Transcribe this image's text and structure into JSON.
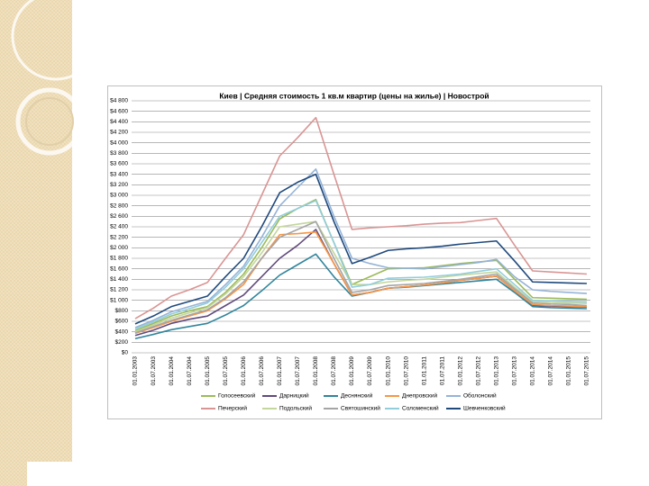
{
  "chart_data": {
    "type": "line",
    "title": "Киев | Средняя стоимость 1 кв.м квартир (цены на жилье) | Новострой",
    "categories": [
      "01.01.2003",
      "01.07.2003",
      "01.01.2004",
      "01.07.2004",
      "01.01.2005",
      "01.07.2005",
      "01.01.2006",
      "01.07.2006",
      "01.01.2007",
      "01.07.2007",
      "01.01.2008",
      "01.07.2008",
      "01.01.2009",
      "01.07.2009",
      "01.01.2010",
      "01.07.2010",
      "01.01.2011",
      "01.07.2011",
      "01.01.2012",
      "01.07.2012",
      "01.01.2013",
      "01.07.2013",
      "01.01.2014",
      "01.07.2014",
      "01.01.2015",
      "01.07.2015"
    ],
    "series": [
      {
        "name": "Голосеевский",
        "color": "#9bbb59",
        "values": [
          420,
          560,
          700,
          800,
          880,
          1150,
          1500,
          2000,
          2550,
          2750,
          2920,
          2100,
          1300,
          1450,
          1600,
          1610,
          1620,
          1660,
          1700,
          1730,
          1760,
          1400,
          1050,
          1040,
          1030,
          1020
        ]
      },
      {
        "name": "Дарницкий",
        "color": "#604a7b",
        "values": [
          330,
          430,
          560,
          640,
          700,
          900,
          1100,
          1450,
          1800,
          2050,
          2350,
          1700,
          1100,
          1150,
          1230,
          1260,
          1290,
          1330,
          1380,
          1420,
          1460,
          1180,
          900,
          890,
          880,
          870
        ]
      },
      {
        "name": "Деснянский",
        "color": "#31859c",
        "values": [
          270,
          350,
          440,
          500,
          560,
          720,
          900,
          1180,
          1480,
          1680,
          1880,
          1450,
          1080,
          1150,
          1230,
          1250,
          1280,
          1310,
          1340,
          1370,
          1400,
          1150,
          880,
          860,
          850,
          840
        ]
      },
      {
        "name": "Днепровский",
        "color": "#f79646",
        "values": [
          370,
          480,
          600,
          700,
          800,
          1030,
          1300,
          1800,
          2250,
          2270,
          2300,
          1700,
          1100,
          1150,
          1230,
          1260,
          1290,
          1330,
          1380,
          1420,
          1460,
          1180,
          920,
          900,
          890,
          880
        ]
      },
      {
        "name": "Оболонский",
        "color": "#95b3d7",
        "values": [
          480,
          620,
          780,
          880,
          980,
          1300,
          1650,
          2200,
          2800,
          3150,
          3500,
          2600,
          1800,
          1700,
          1620,
          1610,
          1600,
          1640,
          1680,
          1720,
          1780,
          1450,
          1200,
          1170,
          1150,
          1130
        ]
      },
      {
        "name": "Печерский",
        "color": "#d99594",
        "values": [
          650,
          850,
          1080,
          1200,
          1340,
          1800,
          2250,
          3000,
          3750,
          4100,
          4480,
          3400,
          2350,
          2380,
          2400,
          2420,
          2450,
          2470,
          2480,
          2520,
          2560,
          2050,
          1560,
          1540,
          1520,
          1500
        ]
      },
      {
        "name": "Подольский",
        "color": "#c3d69b",
        "values": [
          400,
          530,
          660,
          760,
          860,
          1120,
          1450,
          1900,
          2400,
          2450,
          2500,
          1900,
          1300,
          1300,
          1350,
          1380,
          1400,
          1440,
          1480,
          1510,
          1540,
          1250,
          980,
          960,
          950,
          940
        ]
      },
      {
        "name": "Святошинский",
        "color": "#a5a5a5",
        "values": [
          380,
          500,
          620,
          720,
          820,
          1050,
          1350,
          1800,
          2200,
          2350,
          2500,
          1800,
          1150,
          1200,
          1280,
          1300,
          1320,
          1360,
          1400,
          1450,
          1500,
          1220,
          950,
          930,
          920,
          900
        ]
      },
      {
        "name": "Соломенский",
        "color": "#92cddc",
        "values": [
          450,
          590,
          740,
          840,
          950,
          1250,
          1600,
          2100,
          2600,
          2750,
          2900,
          2100,
          1250,
          1300,
          1420,
          1430,
          1440,
          1470,
          1500,
          1550,
          1600,
          1300,
          1000,
          990,
          980,
          970
        ]
      },
      {
        "name": "Шевченковский",
        "color": "#1f497d",
        "values": [
          550,
          700,
          880,
          980,
          1080,
          1450,
          1800,
          2400,
          3050,
          3250,
          3400,
          2500,
          1700,
          1820,
          1950,
          1980,
          2000,
          2030,
          2070,
          2100,
          2130,
          1750,
          1350,
          1340,
          1330,
          1320
        ]
      }
    ],
    "ylim": [
      0,
      4800
    ],
    "yticks": [
      {
        "value": 0,
        "label": "$0"
      },
      {
        "value": 200,
        "label": "$200"
      },
      {
        "value": 400,
        "label": "$400"
      },
      {
        "value": 600,
        "label": "$600"
      },
      {
        "value": 800,
        "label": "$800"
      },
      {
        "value": 1000,
        "label": "$1 000"
      },
      {
        "value": 1200,
        "label": "$1 200"
      },
      {
        "value": 1400,
        "label": "$1 400"
      },
      {
        "value": 1600,
        "label": "$1 600"
      },
      {
        "value": 1800,
        "label": "$1 800"
      },
      {
        "value": 2000,
        "label": "$2 000"
      },
      {
        "value": 2200,
        "label": "$2 200"
      },
      {
        "value": 2400,
        "label": "$2 400"
      },
      {
        "value": 2600,
        "label": "$2 600"
      },
      {
        "value": 2800,
        "label": "$2 800"
      },
      {
        "value": 3000,
        "label": "$3 000"
      },
      {
        "value": 3200,
        "label": "$3 200"
      },
      {
        "value": 3400,
        "label": "$3 400"
      },
      {
        "value": 3600,
        "label": "$3 600"
      },
      {
        "value": 3800,
        "label": "$3 800"
      },
      {
        "value": 4000,
        "label": "$4 000"
      },
      {
        "value": 4200,
        "label": "$4 200"
      },
      {
        "value": 4400,
        "label": "$4 400"
      },
      {
        "value": 4600,
        "label": "$4 600"
      },
      {
        "value": 4800,
        "label": "$4 800"
      }
    ],
    "grid": true,
    "legend": "bottom"
  }
}
